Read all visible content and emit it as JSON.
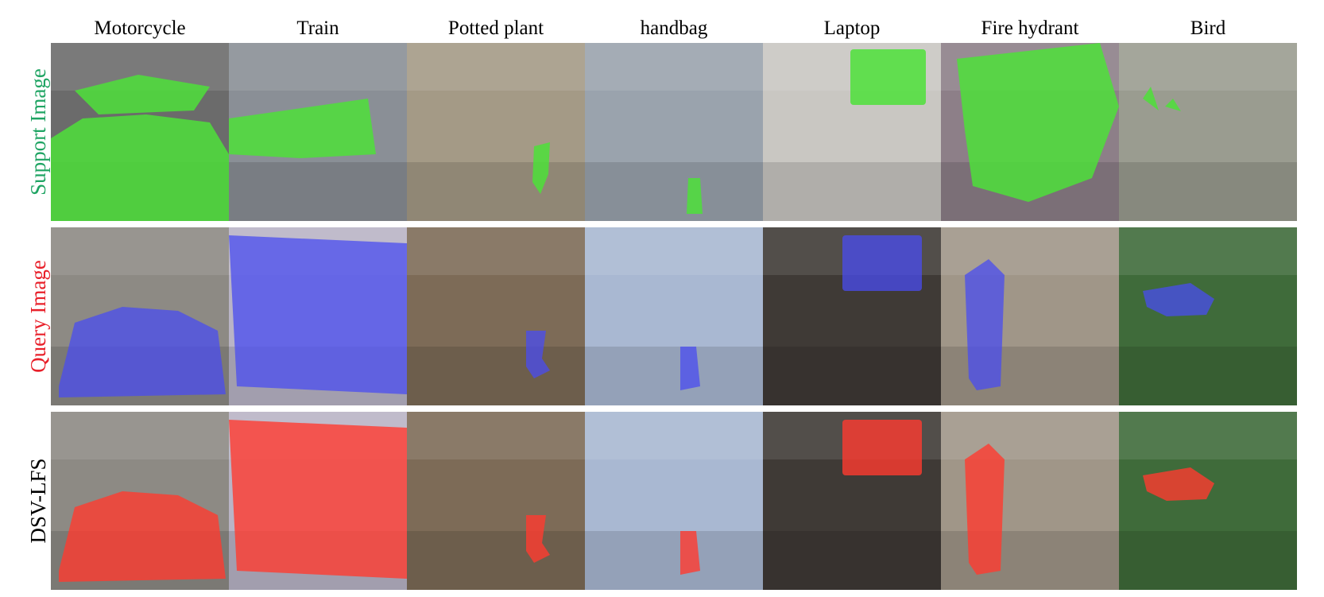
{
  "columns": [
    {
      "label": "Motorcycle",
      "icon": "motorcycle-icon"
    },
    {
      "label": "Train",
      "icon": "train-icon"
    },
    {
      "label": "Potted plant",
      "icon": "potted-plant-icon"
    },
    {
      "label": "handbag",
      "icon": "handbag-icon"
    },
    {
      "label": "Laptop",
      "icon": "laptop-icon"
    },
    {
      "label": "Fire hydrant",
      "icon": "fire-hydrant-icon"
    },
    {
      "label": "Bird",
      "icon": "bird-icon"
    }
  ],
  "rows": [
    {
      "label": "Support Image",
      "mask_color": "#4de03a"
    },
    {
      "label": "Query Image",
      "mask_color": "#4a4cf0"
    },
    {
      "label": "DSV-LFS",
      "mask_color": "#ff3b30"
    }
  ]
}
